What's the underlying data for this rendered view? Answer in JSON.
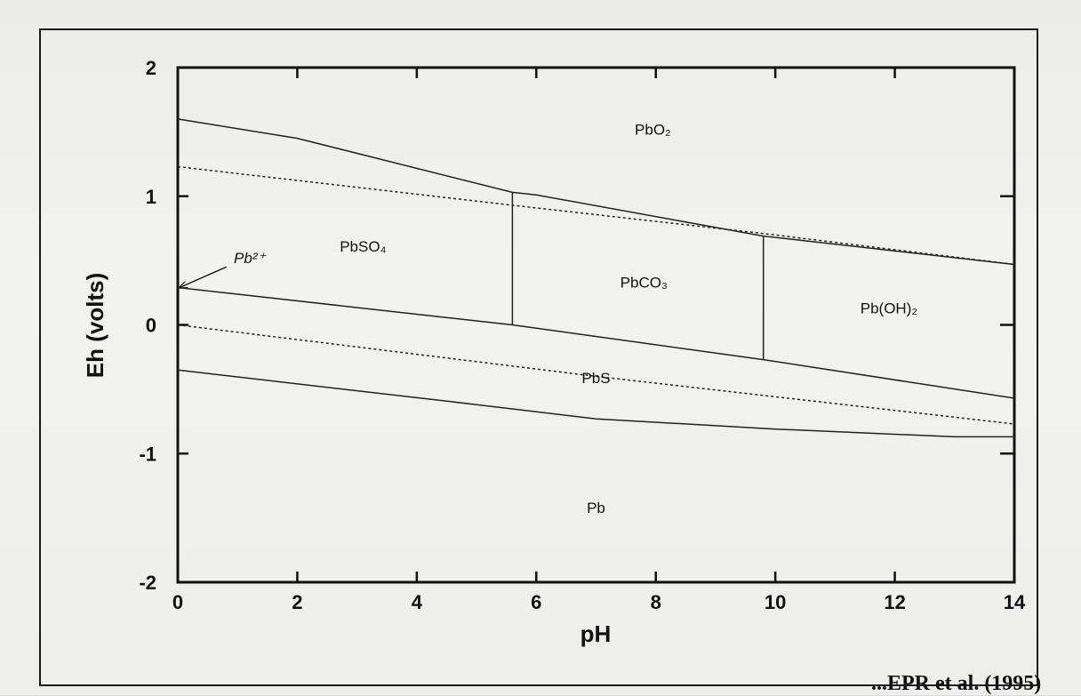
{
  "caption": {
    "text": "...EPR et al. (1995)"
  },
  "chart_data": {
    "type": "line",
    "title": "",
    "xlabel": "pH",
    "ylabel": "Eh (volts)",
    "xlim": [
      0,
      14
    ],
    "ylim": [
      -2,
      2
    ],
    "xticks": [
      0,
      2,
      4,
      6,
      8,
      10,
      12,
      14
    ],
    "yticks": [
      -2,
      -1,
      0,
      1,
      2
    ],
    "grid": false,
    "series": [
      {
        "style": "solid",
        "points": [
          [
            0,
            1.6
          ],
          [
            2,
            1.45
          ],
          [
            5.6,
            1.03
          ],
          [
            6,
            1.01
          ],
          [
            9.8,
            0.69
          ],
          [
            14,
            0.47
          ]
        ]
      },
      {
        "style": "dotted",
        "points": [
          [
            0,
            1.23
          ],
          [
            5.6,
            0.93
          ],
          [
            9.8,
            0.71
          ],
          [
            14,
            0.47
          ]
        ]
      },
      {
        "style": "solid",
        "points": [
          [
            0,
            0.29
          ],
          [
            5.6,
            0.0
          ],
          [
            9.8,
            -0.27
          ],
          [
            14,
            -0.57
          ]
        ]
      },
      {
        "style": "dotted",
        "points": [
          [
            0,
            0.0
          ],
          [
            7,
            -0.4
          ],
          [
            14,
            -0.77
          ]
        ]
      },
      {
        "style": "solid",
        "points": [
          [
            0,
            -0.35
          ],
          [
            5,
            -0.62
          ],
          [
            7,
            -0.73
          ],
          [
            10,
            -0.81
          ],
          [
            13,
            -0.87
          ],
          [
            14,
            -0.87
          ]
        ]
      },
      {
        "style": "solid",
        "points": [
          [
            5.6,
            1.03
          ],
          [
            5.6,
            0.0
          ]
        ]
      },
      {
        "style": "solid",
        "points": [
          [
            9.8,
            0.69
          ],
          [
            9.8,
            -0.27
          ]
        ]
      }
    ],
    "regions": [
      {
        "label": "PbO₂",
        "x": 7.95,
        "y": 1.52
      },
      {
        "label": "PbSO₄",
        "x": 3.1,
        "y": 0.61
      },
      {
        "label": "PbCO₃",
        "x": 7.8,
        "y": 0.33
      },
      {
        "label": "Pb(OH)₂",
        "x": 11.9,
        "y": 0.13
      },
      {
        "label": "PbS",
        "x": 7.0,
        "y": -0.41
      },
      {
        "label": "Pb",
        "x": 7.0,
        "y": -1.42
      }
    ],
    "annotations": [
      {
        "label": "Pb²⁺",
        "x": 1.35,
        "y": 0.52,
        "arrow_to": [
          0,
          0.29
        ]
      }
    ]
  }
}
